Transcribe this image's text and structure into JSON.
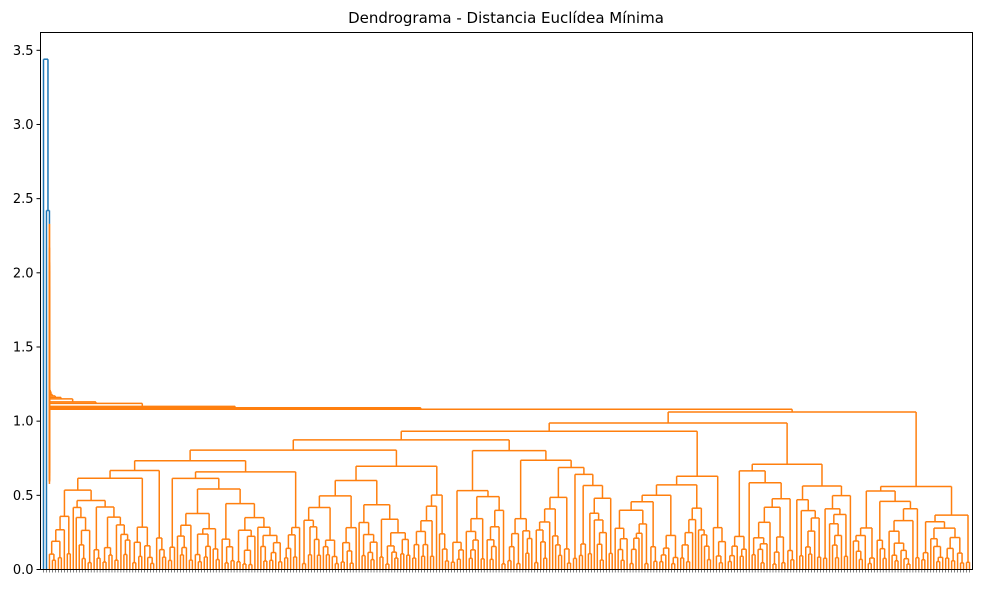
{
  "chart_data": {
    "type": "dendrogram",
    "title": "Dendrograma - Distancia Euclídea Mínima",
    "xlabel": "",
    "ylabel": "",
    "ylim": [
      0,
      3.62
    ],
    "yticks": [
      "0.0",
      "0.5",
      "1.0",
      "1.5",
      "2.0",
      "2.5",
      "3.0",
      "3.5"
    ],
    "grid": false,
    "legend": "none",
    "leaf_count": 312,
    "colors": {
      "root_cluster": "#1f77b4",
      "main_cluster": "#ff7f0e",
      "axes": "#000000"
    },
    "merges": [
      {
        "height": 3.44,
        "description": "root merge of outlier leaf with rest"
      },
      {
        "height": 2.42,
        "description": "second outlier merge"
      },
      {
        "height": 2.33
      },
      {
        "height": 2.17
      },
      {
        "height": 2.07
      },
      {
        "height": 2.05
      },
      {
        "height": 2.01
      },
      {
        "height": 1.91
      },
      {
        "height": 1.86
      },
      {
        "height": 1.68
      },
      {
        "height": 1.66
      },
      {
        "height": 1.64
      },
      {
        "height": 1.58
      },
      {
        "height": 1.53
      },
      {
        "height": 1.5
      },
      {
        "height": 1.48
      },
      {
        "height": 1.47
      },
      {
        "height": 1.46
      },
      {
        "height": 1.36
      },
      {
        "height": 1.34
      },
      {
        "height": 1.33
      },
      {
        "height": 1.28
      },
      {
        "height": 1.27
      },
      {
        "height": 1.23
      },
      {
        "height": 1.22
      },
      {
        "height": 1.21
      },
      {
        "height": 1.2
      },
      {
        "height": 1.18
      },
      {
        "height": 1.17
      },
      {
        "height": 1.16
      },
      {
        "height": 1.15
      },
      {
        "height": 1.13
      },
      {
        "height": 1.12
      },
      {
        "height": 1.1
      },
      {
        "height": 1.09
      },
      {
        "height": 1.08
      },
      {
        "height": 1.06
      },
      {
        "height": 1.04
      },
      {
        "height": 1.02
      },
      {
        "height": 1.01
      },
      {
        "height": 1.0
      },
      {
        "height": 0.98
      },
      {
        "height": 0.97
      },
      {
        "height": 0.96
      },
      {
        "height": 0.94
      },
      {
        "height": 0.92
      },
      {
        "height": 0.9
      },
      {
        "height": 0.88
      },
      {
        "height": 0.86
      },
      {
        "height": 0.84
      },
      {
        "height": 0.82
      },
      {
        "height": 0.8
      },
      {
        "height": 0.78
      },
      {
        "height": 0.76
      },
      {
        "height": 0.74
      },
      {
        "height": 0.72
      },
      {
        "height": 0.7
      },
      {
        "height": 0.67
      },
      {
        "height": 0.65
      },
      {
        "height": 0.62
      },
      {
        "height": 0.6
      },
      {
        "height": 0.58
      },
      {
        "height": 0.55
      },
      {
        "height": 0.52
      },
      {
        "height": 0.5
      },
      {
        "height": 0.45
      },
      {
        "height": 0.42
      },
      {
        "height": 0.37
      },
      {
        "height": 0.31
      },
      {
        "height": 0.25
      },
      {
        "height": 0.18
      }
    ]
  }
}
